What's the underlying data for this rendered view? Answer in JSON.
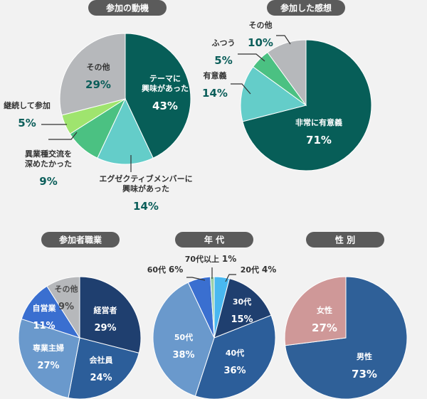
{
  "chart_data": [
    {
      "type": "pie",
      "title": "参加の動機",
      "slices": [
        {
          "label": "テーマに\n興味があった",
          "value": 43,
          "color": "#075e58"
        },
        {
          "label": "エグゼクティブメンバーに\n興味があった",
          "value": 14,
          "color": "#64cdc9"
        },
        {
          "label": "異業種交流を\n深めたかった",
          "value": 9,
          "color": "#4bc182"
        },
        {
          "label": "継続して参加",
          "value": 5,
          "color": "#9fe46e"
        },
        {
          "label": "その他",
          "value": 29,
          "color": "#b6b8bb"
        }
      ]
    },
    {
      "type": "pie",
      "title": "参加した感想",
      "slices": [
        {
          "label": "非常に有意義",
          "value": 71,
          "color": "#075e58"
        },
        {
          "label": "有意義",
          "value": 14,
          "color": "#64cdc9"
        },
        {
          "label": "ふつう",
          "value": 5,
          "color": "#4bc182"
        },
        {
          "label": "その他",
          "value": 10,
          "color": "#b6b8bb"
        }
      ]
    },
    {
      "type": "pie",
      "title": "参加者職業",
      "slices": [
        {
          "label": "経営者",
          "value": 29,
          "color": "#1f3f6f"
        },
        {
          "label": "会社員",
          "value": 24,
          "color": "#2c5e9a"
        },
        {
          "label": "専業主婦",
          "value": 27,
          "color": "#6a99cc"
        },
        {
          "label": "自営業",
          "value": 11,
          "color": "#3a6fd0"
        },
        {
          "label": "その他",
          "value": 9,
          "color": "#b6b8bb"
        }
      ]
    },
    {
      "type": "pie",
      "title": "年 代",
      "slices": [
        {
          "label": "20代",
          "value": 4,
          "color": "#49b8f0"
        },
        {
          "label": "30代",
          "value": 15,
          "color": "#1f3f6f"
        },
        {
          "label": "40代",
          "value": 36,
          "color": "#2c5e9a"
        },
        {
          "label": "50代",
          "value": 38,
          "color": "#6a99cc"
        },
        {
          "label": "60代",
          "value": 6,
          "color": "#3a6fd0"
        },
        {
          "label": "70代以上",
          "value": 1,
          "color": "#9ad0a8"
        }
      ]
    },
    {
      "type": "pie",
      "title": "性 別",
      "slices": [
        {
          "label": "男性",
          "value": 73,
          "color": "#2f6098"
        },
        {
          "label": "女性",
          "value": 27,
          "color": "#cf9898"
        }
      ]
    }
  ]
}
